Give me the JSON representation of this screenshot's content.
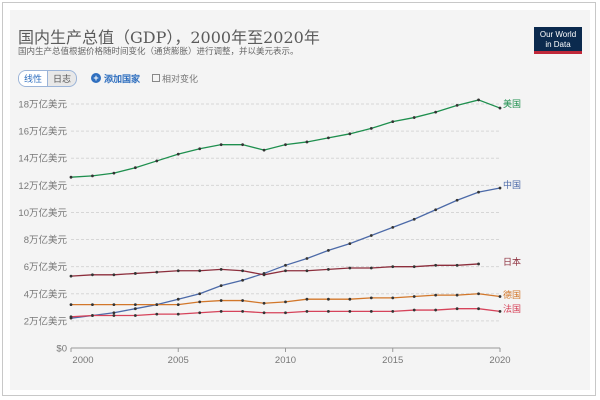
{
  "header": {
    "title": "国内生产总值（GDP），2000年至2020年",
    "subtitle": "国内生产总值根据价格随时间变化（通货膨胀）进行调整，并以美元表示。",
    "logo_line1": "Our World",
    "logo_line2": "in Data"
  },
  "controls": {
    "linear": "线性",
    "log": "日志",
    "add_country": "添加国家",
    "relative": "相对变化"
  },
  "chart_data": {
    "type": "line",
    "title": "国内生产总值（GDP），2000年至2020年",
    "xlim": [
      2000,
      2020
    ],
    "ylim": [
      0,
      18
    ],
    "x_ticks": [
      2000,
      2005,
      2010,
      2015,
      2020
    ],
    "y_ticks": [
      {
        "v": 0,
        "label": "$0"
      },
      {
        "v": 2,
        "label": "2万亿美元"
      },
      {
        "v": 4,
        "label": "4万亿美元"
      },
      {
        "v": 6,
        "label": "6万亿美元"
      },
      {
        "v": 8,
        "label": "8万亿美元"
      },
      {
        "v": 10,
        "label": "10万亿美元"
      },
      {
        "v": 12,
        "label": "12万亿美元"
      },
      {
        "v": 14,
        "label": "14万亿美元"
      },
      {
        "v": 16,
        "label": "16万亿美元"
      },
      {
        "v": 18,
        "label": "18万亿美元"
      }
    ],
    "unit": "万亿美元",
    "grid": true,
    "series": [
      {
        "name": "美国",
        "color": "#1e8f4e",
        "start": 2000,
        "values": [
          12.6,
          12.7,
          12.9,
          13.3,
          13.8,
          14.3,
          14.7,
          15.0,
          15.0,
          14.6,
          15.0,
          15.2,
          15.5,
          15.8,
          16.2,
          16.7,
          17.0,
          17.4,
          17.9,
          18.3,
          17.7
        ]
      },
      {
        "name": "中国",
        "color": "#4c6aa8",
        "start": 2000,
        "values": [
          2.2,
          2.4,
          2.6,
          2.9,
          3.2,
          3.6,
          4.0,
          4.6,
          5.0,
          5.5,
          6.1,
          6.6,
          7.2,
          7.7,
          8.3,
          8.9,
          9.5,
          10.2,
          10.9,
          11.5,
          11.8
        ]
      },
      {
        "name": "日本",
        "color": "#8c2e3c",
        "start": 2000,
        "values": [
          5.3,
          5.4,
          5.4,
          5.5,
          5.6,
          5.7,
          5.7,
          5.8,
          5.7,
          5.4,
          5.7,
          5.7,
          5.8,
          5.9,
          5.9,
          6.0,
          6.0,
          6.1,
          6.1,
          6.2
        ]
      },
      {
        "name": "德国",
        "color": "#d2772a",
        "start": 2000,
        "values": [
          3.2,
          3.2,
          3.2,
          3.2,
          3.2,
          3.2,
          3.4,
          3.5,
          3.5,
          3.3,
          3.4,
          3.6,
          3.6,
          3.6,
          3.7,
          3.7,
          3.8,
          3.9,
          3.9,
          4.0,
          3.8
        ]
      },
      {
        "name": "法国",
        "color": "#d6435a",
        "start": 2000,
        "values": [
          2.3,
          2.4,
          2.4,
          2.4,
          2.5,
          2.5,
          2.6,
          2.7,
          2.7,
          2.6,
          2.6,
          2.7,
          2.7,
          2.7,
          2.7,
          2.7,
          2.8,
          2.8,
          2.9,
          2.9,
          2.7
        ]
      }
    ]
  }
}
